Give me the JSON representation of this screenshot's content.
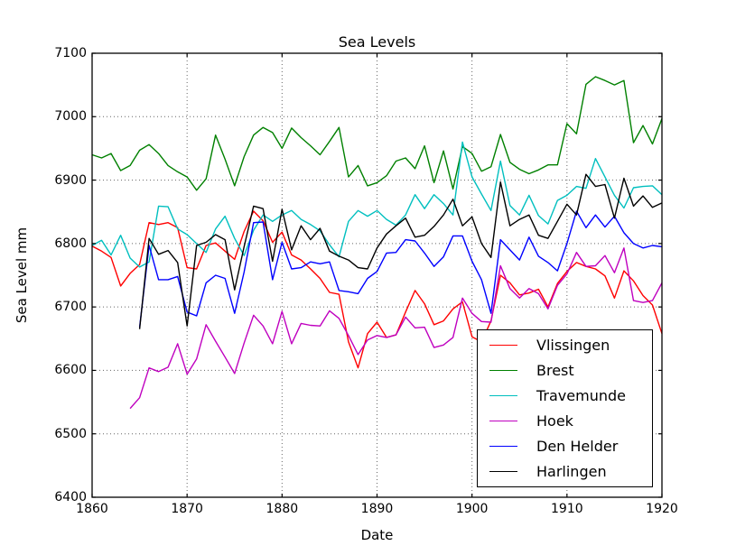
{
  "figure": {
    "background": "#ffffff"
  },
  "chart_data": {
    "type": "line",
    "title": "Sea Levels",
    "xlabel": "Date",
    "ylabel": "Sea Level mm",
    "xlim": [
      1860,
      1920
    ],
    "ylim": [
      6400,
      7100
    ],
    "x_ticks": [
      1860,
      1870,
      1880,
      1890,
      1900,
      1910,
      1920
    ],
    "y_ticks": [
      6400,
      6500,
      6600,
      6700,
      6800,
      6900,
      7000,
      7100
    ],
    "grid": true,
    "grid_style": "dotted",
    "grid_color": "#666666",
    "axis_color": "#000000",
    "legend_position": "lower right",
    "series": [
      {
        "name": "Vlissingen",
        "color": "#ff0000",
        "start_year": 1860,
        "values": [
          6796,
          6788,
          6778,
          6733,
          6753,
          6767,
          6833,
          6830,
          6833,
          6825,
          6762,
          6760,
          6797,
          6801,
          6788,
          6775,
          6819,
          6851,
          6836,
          6802,
          6818,
          6782,
          6774,
          6760,
          6745,
          6723,
          6720,
          6645,
          6604,
          6658,
          6676,
          6652,
          6656,
          6692,
          6726,
          6705,
          6672,
          6678,
          6697,
          6708,
          6653,
          6645,
          6678,
          6750,
          6738,
          6719,
          6722,
          6728,
          6700,
          6737,
          6756,
          6770,
          6764,
          6760,
          6749,
          6714,
          6757,
          6741,
          6718,
          6703,
          6658
        ]
      },
      {
        "name": "Brest",
        "color": "#008000",
        "start_year": 1860,
        "values": [
          6940,
          6935,
          6942,
          6915,
          6923,
          6947,
          6956,
          6942,
          6923,
          6913,
          6905,
          6884,
          6902,
          6971,
          6933,
          6891,
          6937,
          6971,
          6983,
          6975,
          6950,
          6982,
          6967,
          6954,
          6940,
          6961,
          6983,
          6905,
          6923,
          6891,
          6896,
          6907,
          6930,
          6935,
          6918,
          6954,
          6896,
          6946,
          6886,
          6953,
          6942,
          6914,
          6921,
          6972,
          6928,
          6917,
          6910,
          6916,
          6924,
          6924,
          6989,
          6973,
          7051,
          7063,
          7057,
          7050,
          7057,
          6959,
          6986,
          6957,
          6997
        ]
      },
      {
        "name": "Travemunde",
        "color": "#00bfbf",
        "start_year": 1860,
        "values": [
          6797,
          6805,
          6782,
          6813,
          6777,
          6763,
          6771,
          6859,
          6858,
          6823,
          6814,
          6800,
          6786,
          6823,
          6843,
          6808,
          6781,
          6821,
          6845,
          6835,
          6845,
          6852,
          6838,
          6830,
          6820,
          6798,
          6779,
          6835,
          6852,
          6843,
          6852,
          6838,
          6829,
          6845,
          6877,
          6855,
          6877,
          6863,
          6845,
          6960,
          6905,
          6878,
          6852,
          6930,
          6860,
          6845,
          6876,
          6844,
          6831,
          6868,
          6876,
          6890,
          6887,
          6934,
          6905,
          6876,
          6856,
          6888,
          6890,
          6891,
          6877
        ]
      },
      {
        "name": "Hoek",
        "color": "#bf00bf",
        "start_year": 1864,
        "values": [
          6540,
          6557,
          6604,
          6598,
          6605,
          6642,
          6594,
          6618,
          6672,
          6646,
          6621,
          6595,
          6643,
          6687,
          6670,
          6642,
          6693,
          6642,
          6674,
          6671,
          6670,
          6694,
          6682,
          6655,
          6625,
          6648,
          6655,
          6652,
          6656,
          6684,
          6667,
          6668,
          6636,
          6640,
          6652,
          6714,
          6690,
          6677,
          6676,
          6765,
          6729,
          6714,
          6729,
          6721,
          6697,
          6734,
          6752,
          6786,
          6764,
          6765,
          6781,
          6754,
          6793,
          6710,
          6707,
          6710,
          6738
        ]
      },
      {
        "name": "Den Helder",
        "color": "#0000ff",
        "start_year": 1865,
        "values": [
          6668,
          6797,
          6743,
          6743,
          6748,
          6692,
          6686,
          6738,
          6750,
          6745,
          6690,
          6755,
          6833,
          6834,
          6743,
          6802,
          6760,
          6762,
          6771,
          6768,
          6771,
          6726,
          6724,
          6721,
          6745,
          6756,
          6785,
          6786,
          6806,
          6804,
          6785,
          6764,
          6779,
          6812,
          6812,
          6772,
          6743,
          6690,
          6806,
          6790,
          6774,
          6810,
          6780,
          6770,
          6757,
          6800,
          6851,
          6825,
          6845,
          6826,
          6843,
          6817,
          6800,
          6793,
          6797,
          6795
        ]
      },
      {
        "name": "Harlingen",
        "color": "#000000",
        "start_year": 1865,
        "values": [
          6665,
          6808,
          6783,
          6789,
          6770,
          6670,
          6797,
          6802,
          6814,
          6806,
          6727,
          6795,
          6859,
          6855,
          6772,
          6854,
          6790,
          6828,
          6806,
          6824,
          6788,
          6780,
          6774,
          6762,
          6760,
          6793,
          6815,
          6828,
          6840,
          6810,
          6813,
          6827,
          6845,
          6870,
          6828,
          6842,
          6800,
          6778,
          6897,
          6828,
          6838,
          6845,
          6813,
          6808,
          6835,
          6862,
          6845,
          6909,
          6890,
          6893,
          6840,
          6903,
          6859,
          6875,
          6857,
          6864
        ]
      }
    ]
  }
}
